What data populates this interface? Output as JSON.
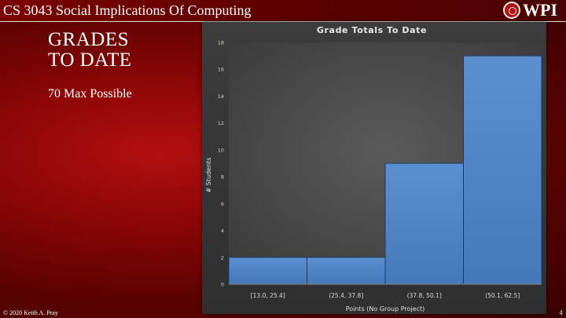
{
  "header": {
    "course_title": "CS 3043 Social Implications Of Computing",
    "logo_text": "WPI"
  },
  "slide": {
    "title_lines": [
      "GRADES",
      "TO DATE"
    ],
    "subtitle": "70 Max Possible"
  },
  "footer": {
    "copyright": "© 2020 Keith A. Pray",
    "page_number": "4"
  },
  "colors": {
    "bar_fill": "#4f86c6",
    "bar_stroke": "#1c3a5f"
  },
  "chart_data": {
    "type": "bar",
    "title": "Grade Totals To Date",
    "xlabel": "Points (No Group Project)",
    "ylabel": "# Students",
    "categories": [
      "[13.0, 25.4]",
      "(25.4, 37.8]",
      "(37.8, 50.1]",
      "(50.1, 62.5]"
    ],
    "values": [
      2,
      2,
      9,
      17
    ],
    "ylim": [
      0,
      18
    ],
    "yticks": [
      "0",
      "2",
      "4",
      "6",
      "8",
      "10",
      "12",
      "14",
      "16",
      "18"
    ],
    "grid": false,
    "legend": "none"
  }
}
